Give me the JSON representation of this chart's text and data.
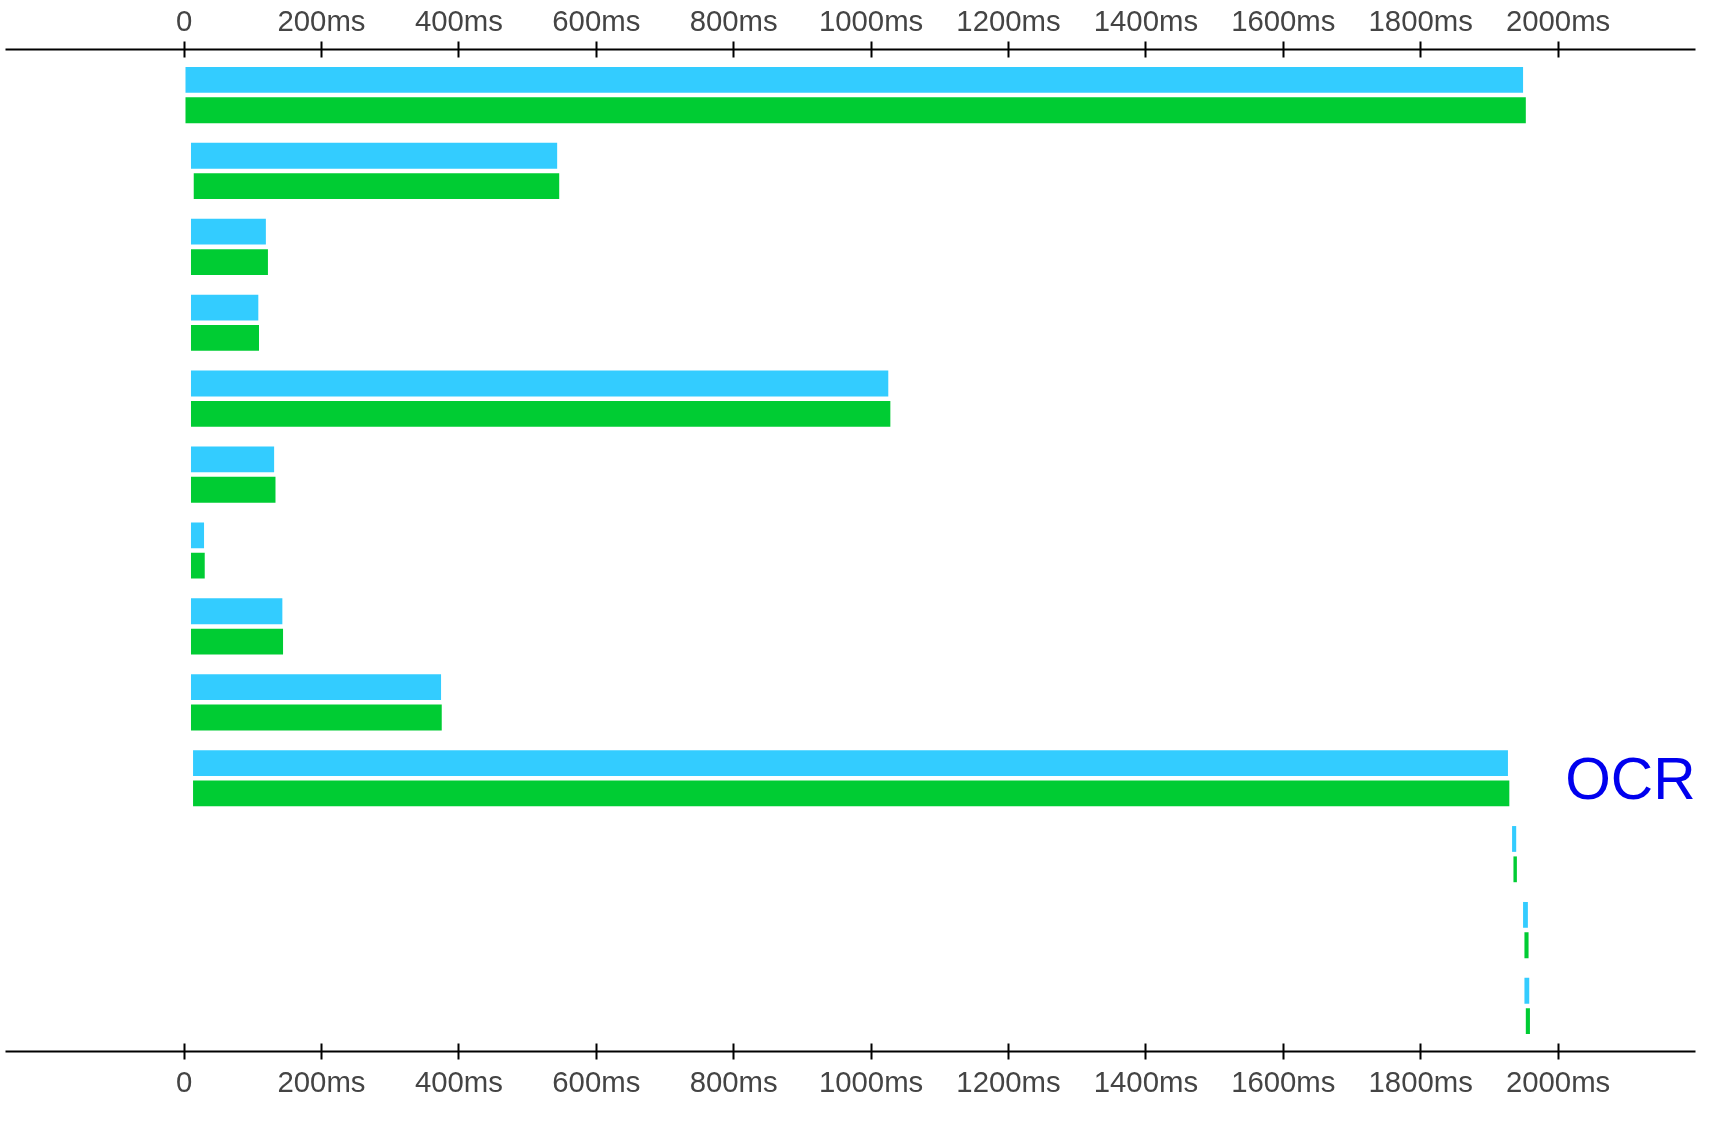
{
  "chart_data": {
    "type": "bar",
    "orientation": "horizontal",
    "categories": [
      null,
      null,
      null,
      null,
      null,
      null,
      null,
      null,
      null,
      null,
      null,
      null,
      null
    ],
    "series": [
      {
        "color": "#33ccff",
        "base": [
          2,
          10,
          10,
          10,
          10,
          10,
          10,
          10,
          10,
          13,
          1933,
          1949,
          1951
        ],
        "values": [
          1947,
          533,
          109,
          98,
          1015,
          121,
          19,
          133,
          364,
          1914,
          6,
          7,
          7
        ]
      },
      {
        "color": "#00cc33",
        "base": [
          2,
          14,
          10,
          10,
          10,
          10,
          10,
          10,
          10,
          13,
          1935,
          1951,
          1953
        ],
        "values": [
          1951,
          532,
          112,
          99,
          1018,
          123,
          20,
          134,
          365,
          1916,
          5,
          6,
          6
        ]
      }
    ],
    "xlim": [
      -260,
      2200
    ],
    "xticks": [
      0,
      {
        "value": 200,
        "label": "200ms"
      },
      {
        "value": 400,
        "label": "400ms"
      },
      {
        "value": 600,
        "label": "600ms"
      },
      {
        "value": 800,
        "label": "800ms"
      },
      {
        "value": 1000,
        "label": "1000ms"
      },
      {
        "value": 1200,
        "label": "1200ms"
      },
      {
        "value": 1400,
        "label": "1400ms"
      },
      {
        "value": 1600,
        "label": "1600ms"
      },
      {
        "value": 1800,
        "label": "1800ms"
      },
      {
        "value": 2000,
        "label": "2000ms"
      }
    ],
    "x2lim": [
      -260,
      2200
    ],
    "x2ticks": [
      0,
      {
        "value": 200,
        "label": "200ms"
      },
      {
        "value": 400,
        "label": "400ms"
      },
      {
        "value": 600,
        "label": "600ms"
      },
      {
        "value": 800,
        "label": "800ms"
      },
      {
        "value": 1000,
        "label": "1000ms"
      },
      {
        "value": 1200,
        "label": "1200ms"
      },
      {
        "value": 1400,
        "label": "1400ms"
      },
      {
        "value": 1600,
        "label": "1600ms"
      },
      {
        "value": 1800,
        "label": "1800ms"
      },
      {
        "value": 2000,
        "label": "2000ms"
      }
    ],
    "annotations": [
      "OCR"
    ],
    "grid": false
  }
}
